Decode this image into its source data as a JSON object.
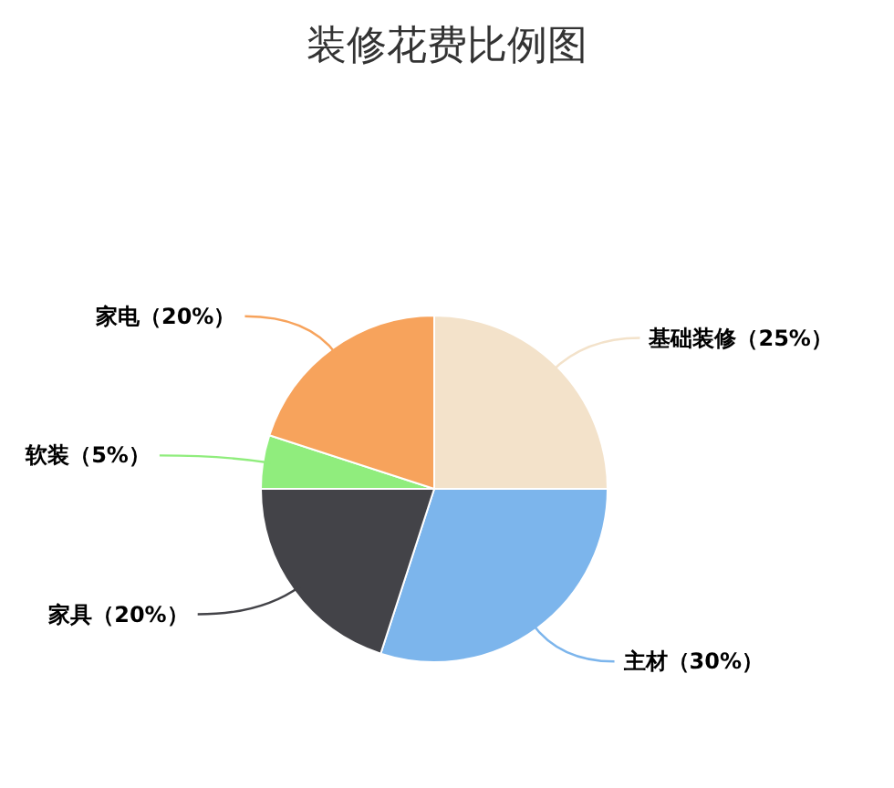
{
  "chart_data": {
    "type": "pie",
    "title": "装修花费比例图",
    "categories": [
      "基础装修（25%）",
      "主材（30%）",
      "家具（20%）",
      "软装（5%）",
      "家电（20%）"
    ],
    "values": [
      25,
      30,
      20,
      5,
      20
    ],
    "colors": [
      "#f3e2ca",
      "#7cb5ec",
      "#434348",
      "#90ed7d",
      "#f7a35c"
    ]
  }
}
